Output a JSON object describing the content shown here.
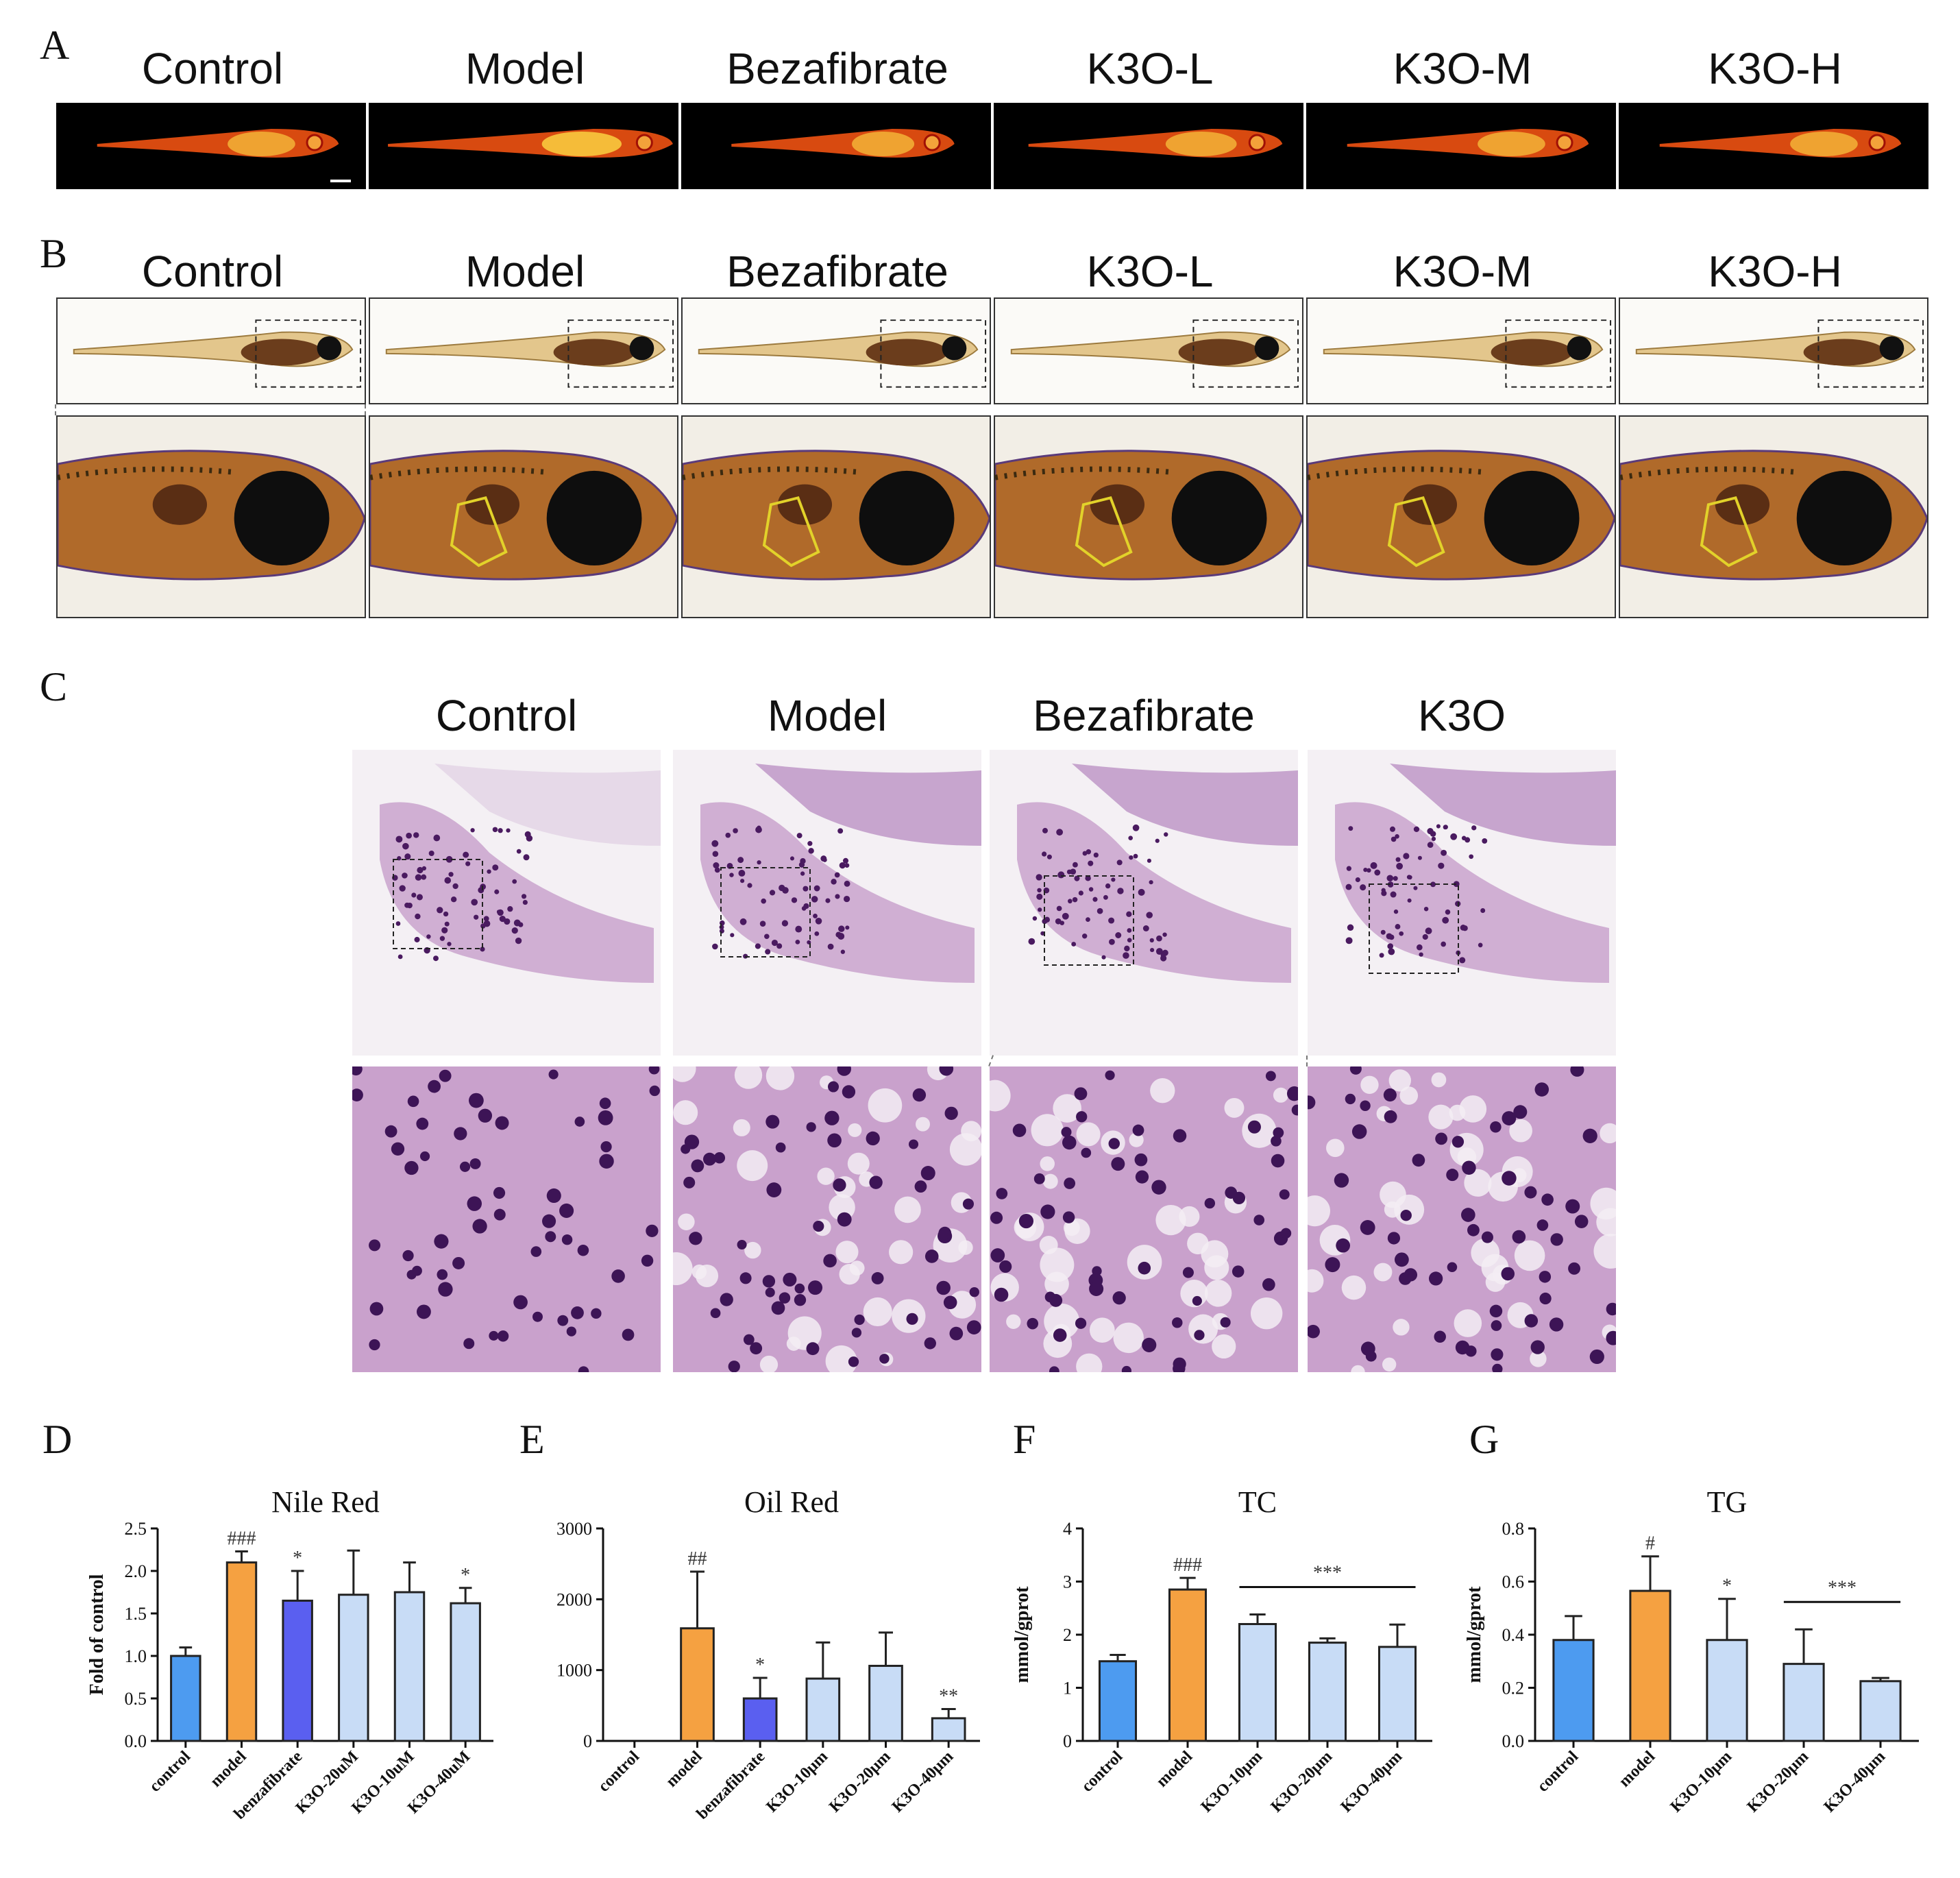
{
  "panel_labels": {
    "a": "A",
    "b": "B",
    "c": "C",
    "d": "D",
    "e": "E",
    "f": "F",
    "g": "G"
  },
  "panel_a": {
    "columns": [
      "Control",
      "Model",
      "Bezafibrate",
      "K3O-L",
      "K3O-M",
      "K3O-H"
    ]
  },
  "panel_b": {
    "columns": [
      "Control",
      "Model",
      "Bezafibrate",
      "K3O-L",
      "K3O-M",
      "K3O-H"
    ]
  },
  "panel_c": {
    "columns": [
      "Control",
      "Model",
      "Bezafibrate",
      "K3O"
    ]
  },
  "colors": {
    "control": "#4d9bf0",
    "model": "#f5a141",
    "benzafibrate": "#5a5ff0",
    "k3o": "#c8dcf6",
    "outline": "#222222",
    "fluor_bg": "#000000",
    "liver_outline": "#e2d22a",
    "he_stain": "#b27ab8"
  },
  "chart_data": [
    {
      "id": "D",
      "type": "bar",
      "title": "Nile Red",
      "xlabel": "",
      "ylabel": "Fold of control",
      "categories": [
        "control",
        "model",
        "benzafibrate",
        "K3O-20uM",
        "K3O-10uM",
        "K3O-40uM"
      ],
      "values": [
        1.0,
        2.1,
        1.65,
        1.72,
        1.75,
        1.62
      ],
      "errors": [
        0.1,
        0.13,
        0.35,
        0.52,
        0.35,
        0.18
      ],
      "annotations": [
        "",
        "###",
        "*",
        "",
        "",
        "*"
      ],
      "ylim": [
        0,
        2.5
      ],
      "yticks": [
        "0.0",
        "0.5",
        "1.0",
        "1.5",
        "2.0",
        "2.5"
      ],
      "bar_colors": [
        "control",
        "model",
        "benzafibrate",
        "k3o",
        "k3o",
        "k3o"
      ]
    },
    {
      "id": "E",
      "type": "bar",
      "title": "Oil Red",
      "xlabel": "",
      "ylabel": "",
      "categories": [
        "control",
        "model",
        "benzafibrate",
        "K3O-10μm",
        "K3O-20μm",
        "K3O-40μm"
      ],
      "values": [
        0,
        1590,
        600,
        880,
        1060,
        320
      ],
      "errors": [
        0,
        800,
        290,
        510,
        470,
        130
      ],
      "annotations": [
        "",
        "##",
        "*",
        "",
        "",
        "**"
      ],
      "ylim": [
        0,
        3000
      ],
      "yticks": [
        "0",
        "1000",
        "2000",
        "3000"
      ],
      "bar_colors": [
        "control",
        "model",
        "benzafibrate",
        "k3o",
        "k3o",
        "k3o"
      ]
    },
    {
      "id": "F",
      "type": "bar",
      "title": "TC",
      "xlabel": "",
      "ylabel": "mmol/gprot",
      "categories": [
        "control",
        "model",
        "K3O-10μm",
        "K3O-20μm",
        "K3O-40μm"
      ],
      "values": [
        1.5,
        2.85,
        2.2,
        1.85,
        1.77
      ],
      "errors": [
        0.12,
        0.22,
        0.18,
        0.08,
        0.42
      ],
      "annotations": [
        "",
        "###",
        "",
        "",
        ""
      ],
      "bracket": {
        "from": 2,
        "to": 4,
        "label": "***"
      },
      "ylim": [
        0,
        4
      ],
      "yticks": [
        "0",
        "1",
        "2",
        "3",
        "4"
      ],
      "bar_colors": [
        "control",
        "model",
        "k3o",
        "k3o",
        "k3o"
      ]
    },
    {
      "id": "G",
      "type": "bar",
      "title": "TG",
      "xlabel": "",
      "ylabel": "mmol/gprot",
      "categories": [
        "control",
        "model",
        "K3O-10μm",
        "K3O-20μm",
        "K3O-40μm"
      ],
      "values": [
        0.38,
        0.565,
        0.38,
        0.29,
        0.225
      ],
      "errors": [
        0.09,
        0.13,
        0.155,
        0.13,
        0.012
      ],
      "annotations": [
        "",
        "#",
        "*",
        "",
        ""
      ],
      "bracket": {
        "from": 3,
        "to": 4,
        "label": "***"
      },
      "ylim": [
        0,
        0.8
      ],
      "yticks": [
        "0.0",
        "0.2",
        "0.4",
        "0.6",
        "0.8"
      ],
      "bar_colors": [
        "control",
        "model",
        "k3o",
        "k3o",
        "k3o"
      ]
    }
  ]
}
